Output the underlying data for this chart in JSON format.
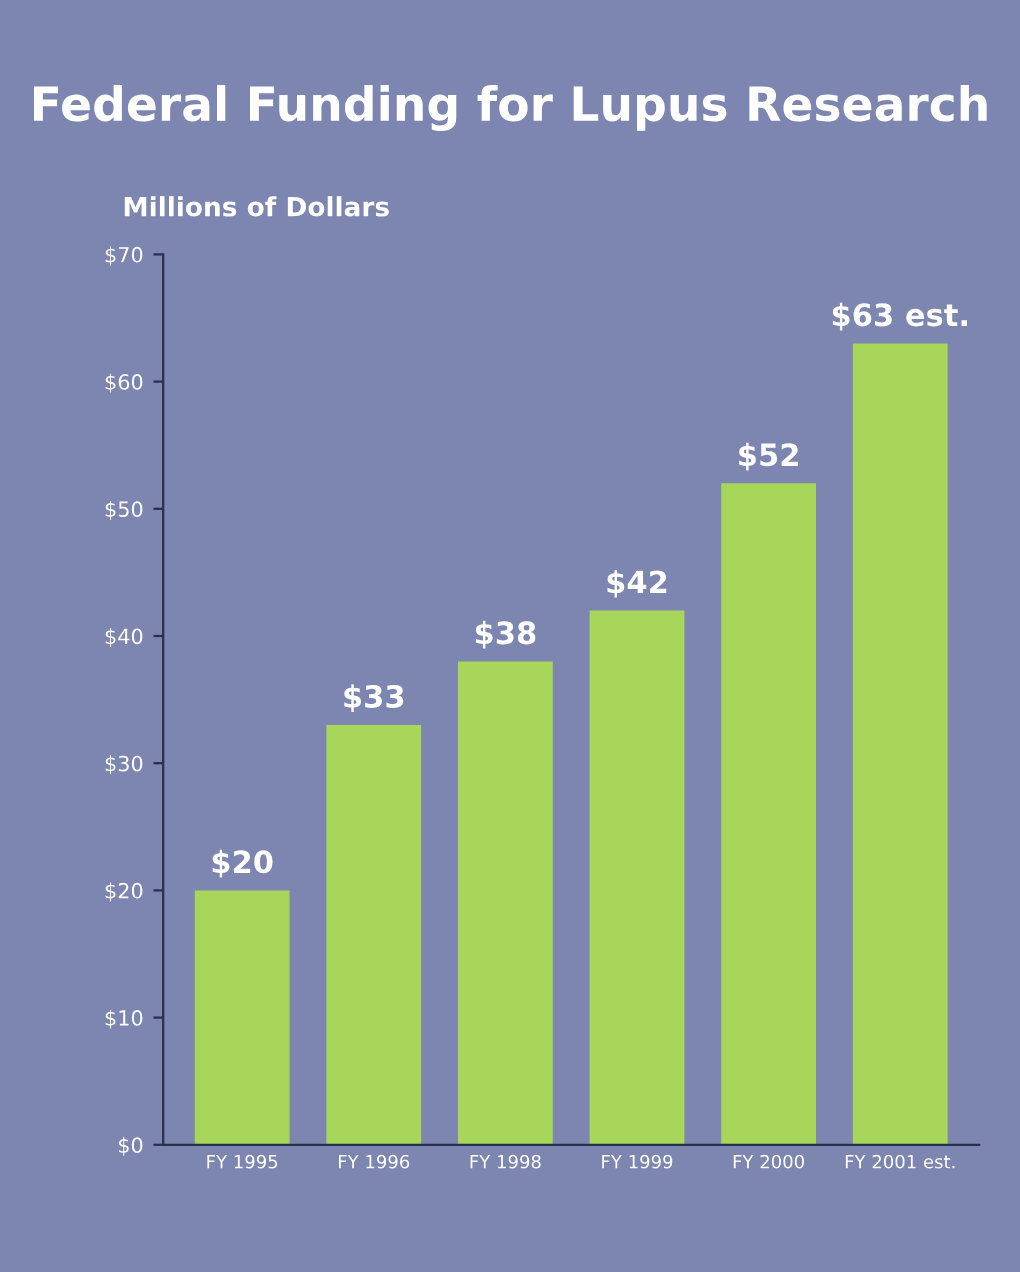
{
  "chart_data": {
    "type": "bar",
    "title": "Federal Funding for Lupus Research",
    "ylabel": "Millions of Dollars",
    "categories": [
      "FY 1995",
      "FY 1996",
      "FY 1998",
      "FY 1999",
      "FY 2000",
      "FY 2001 est."
    ],
    "values": [
      20,
      33,
      38,
      42,
      52,
      63
    ],
    "value_labels": [
      "$20",
      "$33",
      "$38",
      "$42",
      "$52",
      "$63 est."
    ],
    "color": "#a8d65a",
    "ylim": [
      0,
      70
    ],
    "yticks": [
      {
        "value": 0,
        "label": "$0"
      },
      {
        "value": 10,
        "label": "$10"
      },
      {
        "value": 20,
        "label": "$20"
      },
      {
        "value": 30,
        "label": "$30"
      },
      {
        "value": 40,
        "label": "$40"
      },
      {
        "value": 50,
        "label": "$50"
      },
      {
        "value": 60,
        "label": "$60"
      },
      {
        "value": 70,
        "label": "$70"
      }
    ],
    "grid": false
  }
}
